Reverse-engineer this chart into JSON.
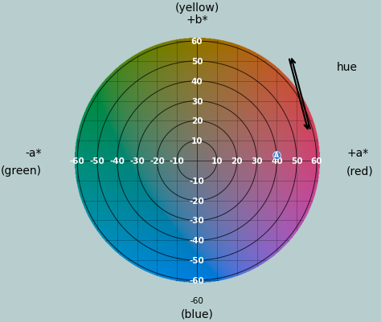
{
  "background_color": "#b8cece",
  "title_top1": "(yellow)",
  "title_top2": "+b*",
  "title_bottom1": "-60",
  "title_bottom2": "(blue)",
  "label_right1": "+a*",
  "label_right2": "(red)",
  "label_left1": "-a*",
  "label_left2": "(green)",
  "hue_label": "hue",
  "axis_range": 60,
  "circle_radii": [
    10,
    20,
    30,
    40,
    50,
    60
  ],
  "x_ticks": [
    -50,
    -40,
    -30,
    -20,
    -10,
    10,
    20,
    30,
    40,
    50
  ],
  "y_ticks": [
    -50,
    -40,
    -30,
    -20,
    -10,
    10,
    20,
    30,
    40,
    50
  ],
  "point_a_x": 40,
  "point_a_y": 0,
  "grid_alpha": 0.4,
  "font_size_labels": 10,
  "font_size_ticks": 7.5,
  "fig_w": 4.74,
  "fig_h": 4.02,
  "dpi": 100
}
